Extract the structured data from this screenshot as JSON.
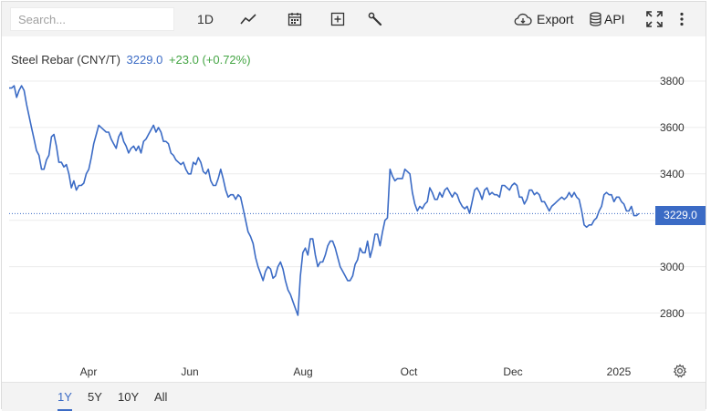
{
  "search": {
    "placeholder": "Search..."
  },
  "toolbar": {
    "interval_label": "1D",
    "chart_type_icon": "line-chart-icon",
    "calendar_icon": "calendar-icon",
    "add_icon": "plus-box-icon",
    "tools_icon": "wrench-icon",
    "export_label": "Export",
    "api_label": "API",
    "fullscreen_icon": "fullscreen-icon",
    "more_icon": "vertical-dots-icon"
  },
  "instrument": {
    "name": "Steel Rebar (CNY/T)",
    "price": "3229.0",
    "change": "+23.0 (+0.72%)"
  },
  "price_tag": "3229.0",
  "ranges": [
    "1Y",
    "5Y",
    "10Y",
    "All"
  ],
  "active_range": "1Y",
  "colors": {
    "line": "#3b6bc5",
    "change_positive": "#44a544",
    "toolbar_bg": "#f3f3f3"
  },
  "chart_data": {
    "type": "line",
    "title": "Steel Rebar (CNY/T)",
    "x_tick_labels": [
      "Apr",
      "Jun",
      "Aug",
      "Oct",
      "Dec",
      "2025"
    ],
    "y_tick_labels": [
      "3800",
      "3600",
      "3400",
      "3000",
      "2800"
    ],
    "ylim": [
      2600,
      3900
    ],
    "grid": true,
    "last_value": 3229.0,
    "series": [
      {
        "values": [
          3770,
          3770,
          3780,
          3730,
          3760,
          3780,
          3760,
          3700,
          3650,
          3600,
          3550,
          3500,
          3480,
          3420,
          3420,
          3460,
          3480,
          3560,
          3570,
          3520,
          3450,
          3450,
          3430,
          3440,
          3400,
          3340,
          3370,
          3330,
          3350,
          3350,
          3360,
          3400,
          3420,
          3470,
          3530,
          3570,
          3610,
          3600,
          3590,
          3580,
          3580,
          3550,
          3530,
          3510,
          3560,
          3580,
          3540,
          3520,
          3490,
          3510,
          3520,
          3500,
          3520,
          3490,
          3540,
          3550,
          3570,
          3590,
          3610,
          3580,
          3600,
          3580,
          3540,
          3540,
          3530,
          3490,
          3480,
          3460,
          3450,
          3440,
          3450,
          3420,
          3400,
          3400,
          3450,
          3440,
          3470,
          3450,
          3410,
          3400,
          3420,
          3370,
          3350,
          3350,
          3380,
          3420,
          3380,
          3330,
          3300,
          3310,
          3310,
          3290,
          3310,
          3300,
          3250,
          3200,
          3150,
          3130,
          3100,
          3040,
          3000,
          2970,
          2940,
          2980,
          3000,
          2990,
          2950,
          2960,
          3000,
          3020,
          2990,
          2940,
          2900,
          2880,
          2850,
          2820,
          2790,
          2960,
          3060,
          3080,
          3050,
          3120,
          3120,
          3050,
          3000,
          3020,
          3020,
          3050,
          3090,
          3110,
          3110,
          3080,
          3040,
          3000,
          2980,
          2960,
          2940,
          2940,
          2960,
          3010,
          3030,
          3080,
          3060,
          3060,
          3110,
          3040,
          3080,
          3140,
          3140,
          3090,
          3150,
          3200,
          3210,
          3420,
          3390,
          3370,
          3380,
          3380,
          3380,
          3420,
          3410,
          3400,
          3320,
          3270,
          3240,
          3260,
          3250,
          3270,
          3280,
          3340,
          3320,
          3290,
          3290,
          3320,
          3300,
          3330,
          3340,
          3320,
          3300,
          3320,
          3310,
          3280,
          3260,
          3250,
          3260,
          3230,
          3280,
          3330,
          3340,
          3320,
          3290,
          3330,
          3340,
          3310,
          3320,
          3310,
          3310,
          3300,
          3350,
          3350,
          3340,
          3330,
          3350,
          3360,
          3350,
          3300,
          3300,
          3270,
          3290,
          3330,
          3330,
          3310,
          3320,
          3310,
          3280,
          3280,
          3260,
          3240,
          3260,
          3270,
          3280,
          3290,
          3300,
          3290,
          3300,
          3320,
          3300,
          3320,
          3300,
          3290,
          3240,
          3180,
          3170,
          3180,
          3180,
          3200,
          3210,
          3240,
          3260,
          3310,
          3320,
          3310,
          3310,
          3280,
          3300,
          3300,
          3280,
          3270,
          3240,
          3240,
          3260,
          3220,
          3220,
          3229
        ]
      }
    ]
  }
}
